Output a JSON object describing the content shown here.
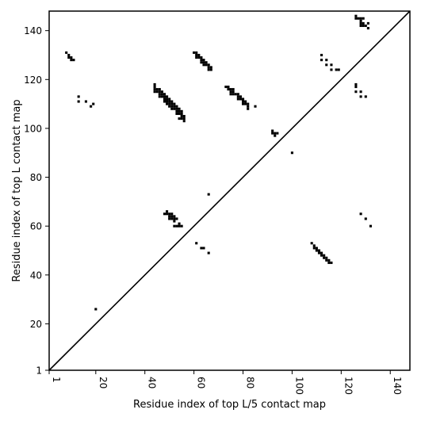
{
  "chart_data": {
    "type": "scatter",
    "xlabel": "Residue index of top L/5 contact map",
    "ylabel": "Residue index of top L contact map",
    "xlim": [
      1,
      148
    ],
    "ylim": [
      1,
      148
    ],
    "xticks": [
      {
        "value": 1,
        "label": "1"
      },
      {
        "value": 20,
        "label": "20"
      },
      {
        "value": 40,
        "label": "40"
      },
      {
        "value": 60,
        "label": "60"
      },
      {
        "value": 80,
        "label": "80"
      },
      {
        "value": 100,
        "label": "100"
      },
      {
        "value": 120,
        "label": "120"
      },
      {
        "value": 140,
        "label": "140"
      }
    ],
    "yticks": [
      {
        "value": 1,
        "label": "1"
      },
      {
        "value": 20,
        "label": "20"
      },
      {
        "value": 40,
        "label": "40"
      },
      {
        "value": 60,
        "label": "60"
      },
      {
        "value": 80,
        "label": "80"
      },
      {
        "value": 100,
        "label": "100"
      },
      {
        "value": 120,
        "label": "120"
      },
      {
        "value": 140,
        "label": "140"
      }
    ],
    "diagonal": true,
    "grid": false,
    "marker_color": "#000000",
    "points": [
      [
        8,
        131
      ],
      [
        9,
        130
      ],
      [
        9,
        129
      ],
      [
        10,
        129
      ],
      [
        10,
        128
      ],
      [
        11,
        128
      ],
      [
        13,
        113
      ],
      [
        13,
        111
      ],
      [
        16,
        111
      ],
      [
        18,
        109
      ],
      [
        19,
        110
      ],
      [
        20,
        26
      ],
      [
        44,
        118
      ],
      [
        44,
        117
      ],
      [
        44,
        116
      ],
      [
        44,
        115
      ],
      [
        45,
        116
      ],
      [
        45,
        115
      ],
      [
        46,
        116
      ],
      [
        46,
        115
      ],
      [
        46,
        114
      ],
      [
        46,
        113
      ],
      [
        47,
        115
      ],
      [
        47,
        114
      ],
      [
        47,
        113
      ],
      [
        48,
        114
      ],
      [
        48,
        113
      ],
      [
        48,
        112
      ],
      [
        48,
        111
      ],
      [
        49,
        113
      ],
      [
        49,
        112
      ],
      [
        49,
        111
      ],
      [
        49,
        110
      ],
      [
        50,
        112
      ],
      [
        50,
        111
      ],
      [
        50,
        110
      ],
      [
        50,
        109
      ],
      [
        51,
        111
      ],
      [
        51,
        110
      ],
      [
        51,
        109
      ],
      [
        51,
        108
      ],
      [
        52,
        110
      ],
      [
        52,
        109
      ],
      [
        52,
        108
      ],
      [
        53,
        109
      ],
      [
        53,
        108
      ],
      [
        53,
        107
      ],
      [
        53,
        106
      ],
      [
        54,
        108
      ],
      [
        54,
        107
      ],
      [
        54,
        106
      ],
      [
        54,
        104
      ],
      [
        55,
        107
      ],
      [
        55,
        106
      ],
      [
        55,
        105
      ],
      [
        55,
        104
      ],
      [
        56,
        105
      ],
      [
        56,
        104
      ],
      [
        56,
        103
      ],
      [
        60,
        131
      ],
      [
        61,
        131
      ],
      [
        61,
        130
      ],
      [
        61,
        129
      ],
      [
        62,
        130
      ],
      [
        62,
        129
      ],
      [
        63,
        129
      ],
      [
        63,
        128
      ],
      [
        63,
        127
      ],
      [
        64,
        128
      ],
      [
        64,
        127
      ],
      [
        64,
        126
      ],
      [
        65,
        127
      ],
      [
        65,
        126
      ],
      [
        66,
        126
      ],
      [
        66,
        125
      ],
      [
        66,
        124
      ],
      [
        67,
        125
      ],
      [
        67,
        124
      ],
      [
        73,
        117
      ],
      [
        74,
        117
      ],
      [
        74,
        116
      ],
      [
        75,
        116
      ],
      [
        75,
        115
      ],
      [
        75,
        114
      ],
      [
        76,
        116
      ],
      [
        76,
        115
      ],
      [
        76,
        114
      ],
      [
        77,
        114
      ],
      [
        78,
        114
      ],
      [
        78,
        113
      ],
      [
        78,
        112
      ],
      [
        79,
        113
      ],
      [
        79,
        112
      ],
      [
        80,
        112
      ],
      [
        80,
        111
      ],
      [
        80,
        110
      ],
      [
        81,
        111
      ],
      [
        81,
        110
      ],
      [
        82,
        110
      ],
      [
        82,
        109
      ],
      [
        82,
        108
      ],
      [
        85,
        109
      ],
      [
        92,
        99
      ],
      [
        92,
        98
      ],
      [
        93,
        98
      ],
      [
        93,
        97
      ],
      [
        94,
        98
      ],
      [
        100,
        90
      ],
      [
        66,
        73
      ],
      [
        48,
        65
      ],
      [
        49,
        66
      ],
      [
        49,
        65
      ],
      [
        50,
        65
      ],
      [
        50,
        64
      ],
      [
        50,
        63
      ],
      [
        51,
        65
      ],
      [
        51,
        64
      ],
      [
        51,
        63
      ],
      [
        52,
        64
      ],
      [
        52,
        63
      ],
      [
        52,
        62
      ],
      [
        53,
        63
      ],
      [
        53,
        60
      ],
      [
        54,
        61
      ],
      [
        54,
        60
      ],
      [
        55,
        60
      ],
      [
        52,
        60
      ],
      [
        61,
        53
      ],
      [
        63,
        51
      ],
      [
        64,
        51
      ],
      [
        66,
        49
      ],
      [
        108,
        53
      ],
      [
        109,
        52
      ],
      [
        109,
        51
      ],
      [
        110,
        51
      ],
      [
        110,
        50
      ],
      [
        111,
        50
      ],
      [
        111,
        49
      ],
      [
        112,
        49
      ],
      [
        112,
        48
      ],
      [
        113,
        48
      ],
      [
        113,
        47
      ],
      [
        114,
        47
      ],
      [
        114,
        46
      ],
      [
        115,
        46
      ],
      [
        115,
        45
      ],
      [
        116,
        45
      ],
      [
        112,
        130
      ],
      [
        112,
        128
      ],
      [
        114,
        128
      ],
      [
        114,
        126
      ],
      [
        116,
        126
      ],
      [
        116,
        124
      ],
      [
        118,
        124
      ],
      [
        119,
        124
      ],
      [
        126,
        118
      ],
      [
        126,
        117
      ],
      [
        126,
        115
      ],
      [
        128,
        115
      ],
      [
        128,
        113
      ],
      [
        130,
        113
      ],
      [
        126,
        146
      ],
      [
        126,
        145
      ],
      [
        127,
        145
      ],
      [
        128,
        145
      ],
      [
        128,
        144
      ],
      [
        128,
        143
      ],
      [
        128,
        142
      ],
      [
        129,
        145
      ],
      [
        129,
        143
      ],
      [
        129,
        142
      ],
      [
        130,
        142
      ],
      [
        131,
        143
      ],
      [
        131,
        141
      ],
      [
        128,
        65
      ],
      [
        130,
        63
      ],
      [
        132,
        60
      ]
    ]
  }
}
